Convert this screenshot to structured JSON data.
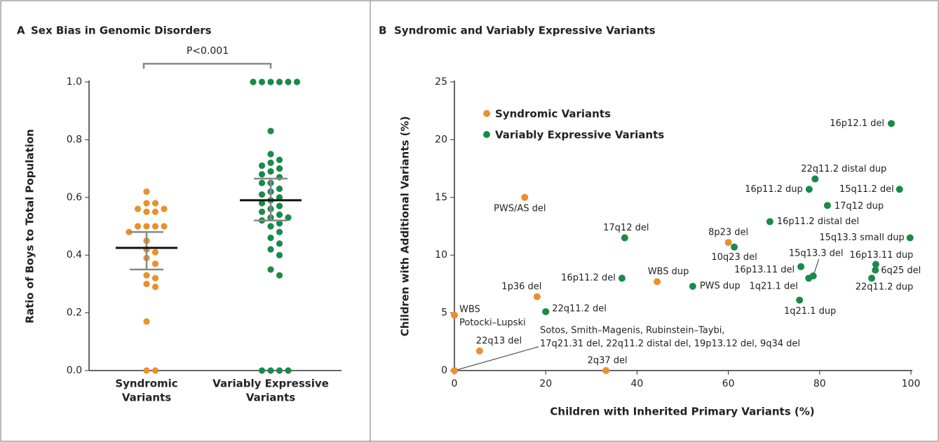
{
  "chart_data": [
    {
      "type": "strip",
      "panel": "A",
      "title": "Sex Bias in Genomic Disorders",
      "ylabel": "Ratio of Boys to Total Population",
      "categories": [
        [
          "Syndromic",
          "Variants"
        ],
        [
          "Variably Expressive",
          "Variants"
        ]
      ],
      "annotation": "P<0.001",
      "ylim": [
        0,
        1
      ],
      "yticks": [
        {
          "value": 0,
          "label": "0.0"
        },
        0.2,
        0.4,
        0.6,
        0.8,
        {
          "value": 1,
          "label": "1.0"
        }
      ],
      "series": [
        {
          "color": "#e8912e",
          "mean": 0.425,
          "error_low": 0.35,
          "error_high": 0.48,
          "values": [
            0.62,
            0.58,
            0.58,
            0.56,
            0.56,
            0.55,
            0.55,
            0.5,
            0.5,
            0.5,
            0.5,
            0.48,
            0.45,
            0.42,
            0.41,
            0.39,
            0.37,
            0.33,
            0.32,
            0.3,
            0.29,
            0.17,
            0,
            0
          ]
        },
        {
          "color": "#1a8a4a",
          "mean": 0.59,
          "error_low": 0.52,
          "error_high": 0.665,
          "values": [
            1,
            1,
            1,
            1,
            1,
            1,
            0.83,
            0.75,
            0.73,
            0.72,
            0.71,
            0.7,
            0.69,
            0.68,
            0.67,
            0.65,
            0.65,
            0.63,
            0.62,
            0.61,
            0.6,
            0.59,
            0.58,
            0.57,
            0.56,
            0.55,
            0.54,
            0.53,
            0.53,
            0.52,
            0.51,
            0.5,
            0.48,
            0.46,
            0.44,
            0.42,
            0.4,
            0.35,
            0.33,
            0,
            0,
            0,
            0
          ]
        }
      ]
    },
    {
      "type": "scatter",
      "panel": "B",
      "title": "Syndromic and Variably Expressive Variants",
      "xlabel": "Children with Inherited Primary Variants (%)",
      "ylabel": "Children with Additional Variants (%)",
      "xlim": [
        0,
        100
      ],
      "xticks": [
        0,
        20,
        40,
        60,
        80,
        100
      ],
      "ylim": [
        0,
        25
      ],
      "yticks": [
        0,
        5,
        10,
        15,
        20,
        25
      ],
      "series": [
        {
          "name": "Syndromic Variants",
          "color": "#e8912e",
          "x": [
            15.4,
            44.4,
            18.1,
            0,
            5.5,
            33.2,
            0,
            60
          ],
          "values": [
            15,
            7.7,
            6.4,
            4.8,
            1.7,
            0,
            0,
            11.1
          ],
          "labels": [
            "PWS/AS del",
            "WBS dup",
            "1p36 del",
            [
              "WBS",
              "Potocki–Lupski"
            ],
            "22q13 del",
            "2q37 del",
            [
              "Sotos, Smith–Magenis, Rubinstein–Taybi,",
              "17q21.31 del, 22q11.2 distal del, 19p13.12 del, 9q34 del"
            ],
            "8p23 del"
          ]
        },
        {
          "name": "Variably Expressive Variants",
          "color": "#1a8a4a",
          "x": [
            95.7,
            79,
            77.7,
            97.5,
            81.7,
            69.1,
            99.8,
            37.3,
            61.3,
            92.3,
            92.2,
            91.4,
            78.6,
            75.9,
            77.6,
            75.6,
            36.7,
            20,
            52.2
          ],
          "values": [
            21.4,
            16.6,
            15.7,
            15.7,
            14.3,
            12.9,
            11.5,
            11.5,
            10.7,
            9.2,
            8.7,
            8,
            8.2,
            9,
            8,
            6.1,
            8,
            5.1,
            7.3
          ],
          "labels": [
            "16p12.1 del",
            "22q11.2 distal dup",
            "16p11.2 dup",
            "15q11.2 del",
            "17q12 dup",
            "16p11.2 distal del",
            "15q13.3 small dup",
            "17q12 del",
            "10q23 del",
            "16p13.11 dup",
            "6q25 del",
            "22q11.2 dup",
            "15q13.3 del",
            "16p13.11 del",
            "1q21.1 del",
            "1q21.1 dup",
            "16p11.2 del",
            "22q11.2 del",
            "PWS dup"
          ]
        }
      ]
    }
  ]
}
